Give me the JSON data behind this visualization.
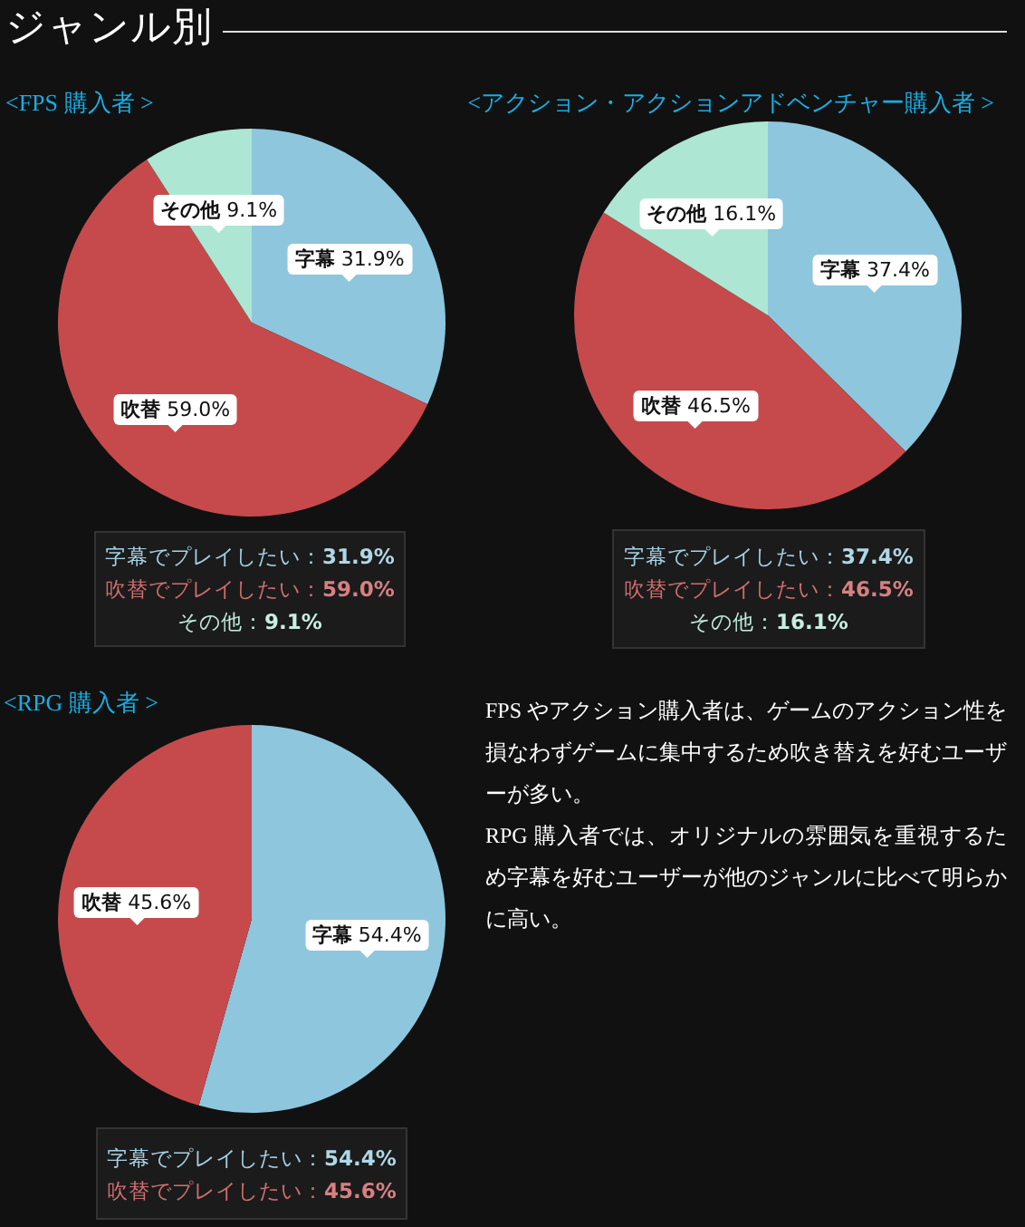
{
  "chart_data": [
    {
      "type": "pie",
      "title": "<FPS 購入者 >",
      "categories": [
        "字幕",
        "吹替",
        "その他"
      ],
      "values": [
        31.9,
        59.0,
        9.1
      ],
      "colors": [
        "#8ec6dd",
        "#c64a4c",
        "#aee6d4"
      ],
      "value_labels": [
        "31.9%",
        "59.0%",
        "9.1%"
      ],
      "annotations": [
        "字幕でプレイしたい：31.9%",
        "吹替でプレイしたい：59.0%",
        "その他：9.1%"
      ]
    },
    {
      "type": "pie",
      "title": "<アクション・アクションアドベンチャー購入者 >",
      "categories": [
        "字幕",
        "吹替",
        "その他"
      ],
      "values": [
        37.4,
        46.5,
        16.1
      ],
      "colors": [
        "#8ec6dd",
        "#c64a4c",
        "#aee6d4"
      ],
      "value_labels": [
        "37.4%",
        "46.5%",
        "16.1%"
      ],
      "annotations": [
        "字幕でプレイしたい：37.4%",
        "吹替でプレイしたい：46.5%",
        "その他：16.1%"
      ]
    },
    {
      "type": "pie",
      "title": "<RPG 購入者 >",
      "categories": [
        "字幕",
        "吹替"
      ],
      "values": [
        54.4,
        45.6
      ],
      "colors": [
        "#8ec6dd",
        "#c64a4c"
      ],
      "value_labels": [
        "54.4%",
        "45.6%"
      ],
      "annotations": [
        "字幕でプレイしたい：54.4%",
        "吹替でプレイしたい：45.6%"
      ]
    },
    {
      "type": "other",
      "title": "ジャンル別",
      "annotations": [
        "FPS やアクション購入者は、ゲームのアクション性を損なわずゲームに集中するため吹き替えを好むユーザーが多い。",
        "RPG 購入者では、オリジナルの雰囲気を重視するため字幕を好むユーザーが他のジャンルに比べて明らかに高い。"
      ]
    }
  ]
}
